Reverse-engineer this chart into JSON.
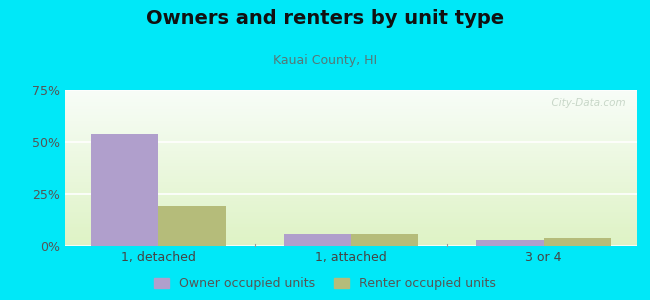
{
  "title": "Owners and renters by unit type",
  "subtitle": "Kauai County, HI",
  "categories": [
    "1, detached",
    "1, attached",
    "3 or 4"
  ],
  "owner_values": [
    54,
    6,
    3
  ],
  "renter_values": [
    19,
    6,
    4
  ],
  "owner_color": "#b09fcc",
  "renter_color": "#b5bc7a",
  "ylim": [
    0,
    75
  ],
  "yticks": [
    0,
    25,
    50,
    75
  ],
  "ytick_labels": [
    "0%",
    "25%",
    "50%",
    "75%"
  ],
  "bar_width": 0.35,
  "background_outer": "#00e8f8",
  "title_fontsize": 14,
  "subtitle_fontsize": 9,
  "legend_fontsize": 9,
  "axis_fontsize": 9,
  "watermark": "  City-Data.com"
}
